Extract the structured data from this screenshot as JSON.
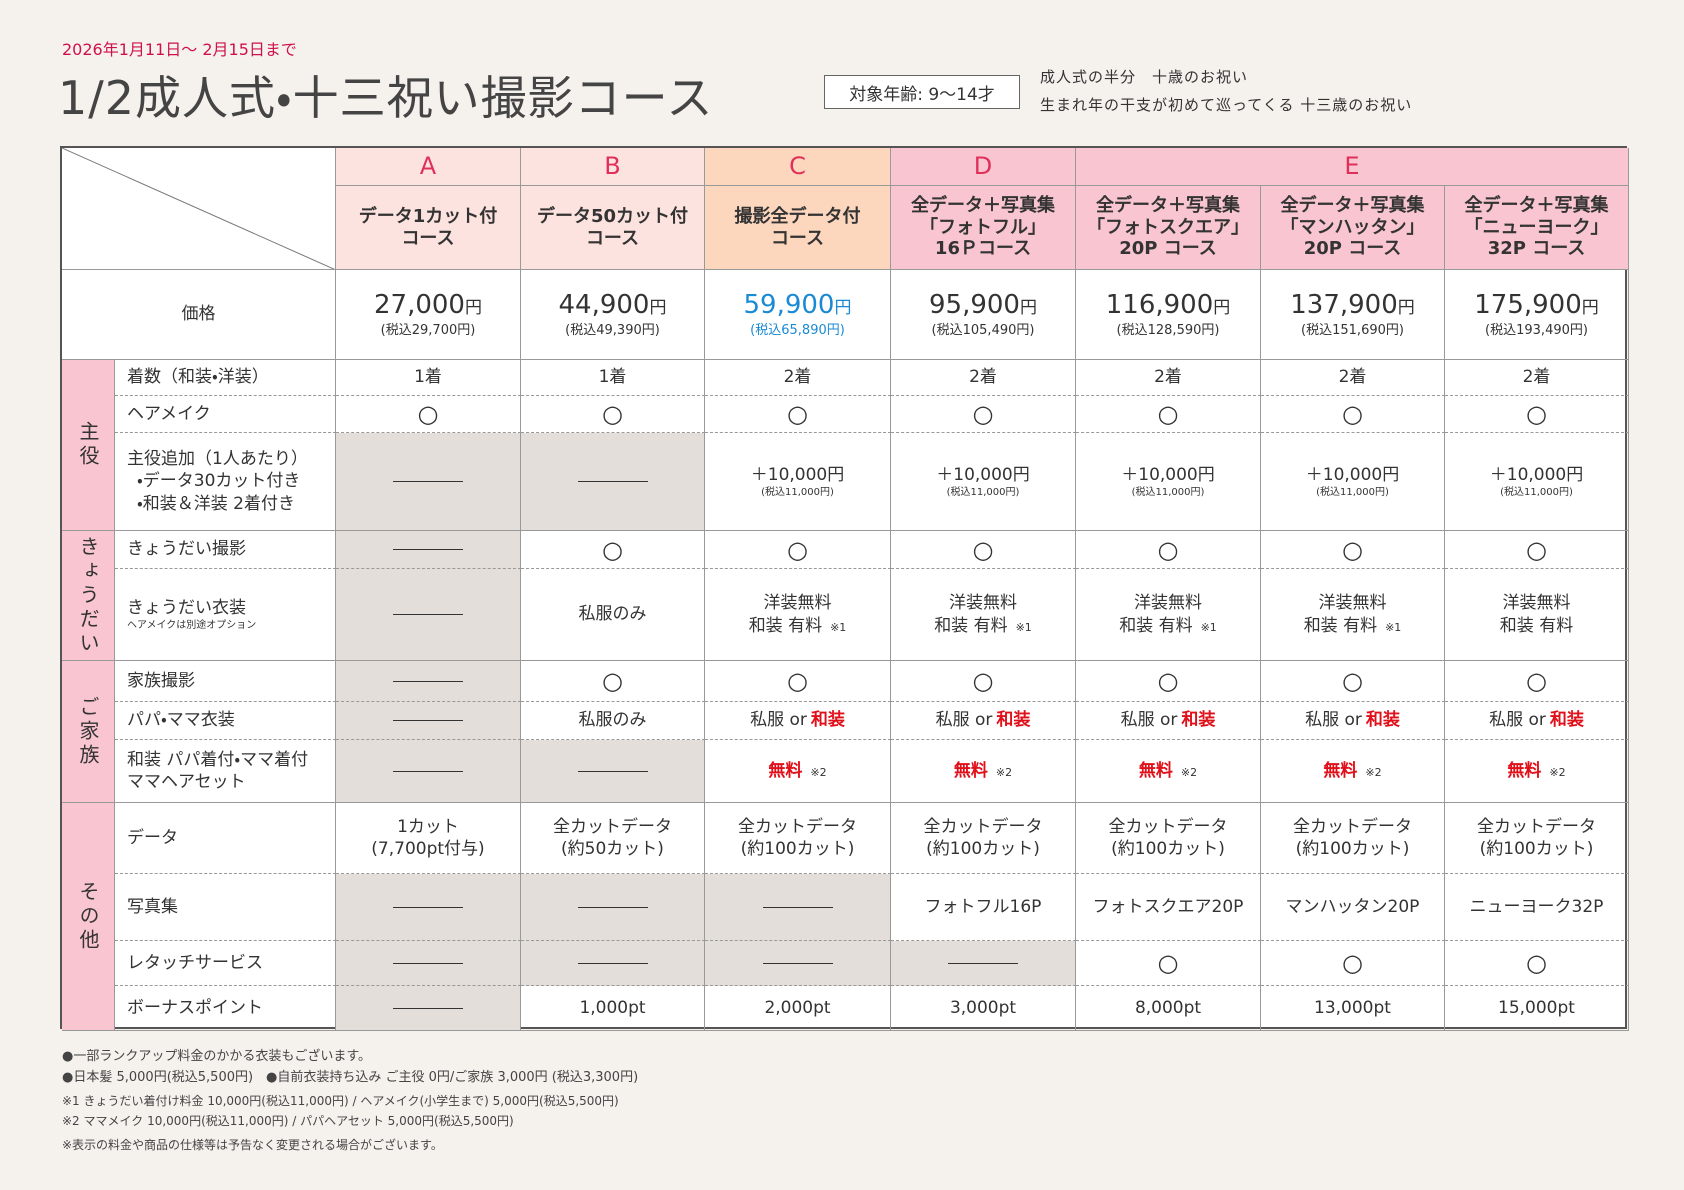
{
  "header": {
    "period": "2026年1月11日～ 2月15日まで",
    "title": "1/2成人式・十三祝い撮影コース",
    "age": "対象年齢: 9〜14才",
    "subtitle": [
      "成人式の半分　十歳のお祝い",
      "生まれ年の干支が初めて巡ってくる 十三歳のお祝い"
    ]
  },
  "table": {
    "groups": [
      {
        "letter": "A",
        "color": "#fde3df",
        "courses": [
          {
            "name": [
              "データ1カット付",
              "コース"
            ],
            "amount": "27,000",
            "yen": "円",
            "tax": "(税込29,700円)"
          }
        ]
      },
      {
        "letter": "B",
        "color": "#fde3df",
        "courses": [
          {
            "name": [
              "データ50カット付",
              "コース"
            ],
            "amount": "44,900",
            "yen": "円",
            "tax": "(税込49,390円)"
          }
        ]
      },
      {
        "letter": "C",
        "color": "#fcd6bd",
        "courses": [
          {
            "name": [
              "撮影全データ付",
              "コース"
            ],
            "amount": "59,900",
            "yen": "円",
            "tax": "(税込65,890円)",
            "price_color": "#1a8ad4"
          }
        ]
      },
      {
        "letter": "D",
        "color": "#f8c5d0",
        "courses": [
          {
            "name": [
              "全データ＋写真集",
              "「フォトフル」",
              "16Ｐコース"
            ],
            "amount": "95,900",
            "yen": "円",
            "tax": "(税込105,490円)"
          }
        ]
      },
      {
        "letter": "E",
        "color": "#f8c5d0",
        "courses": [
          {
            "name": [
              "全データ＋写真集",
              "「フォトスクエア」",
              "20P コース"
            ],
            "amount": "116,900",
            "yen": "円",
            "tax": "(税込128,590円)"
          },
          {
            "name": [
              "全データ＋写真集",
              "「マンハッタン」",
              "20P コース"
            ],
            "amount": "137,900",
            "yen": "円",
            "tax": "(税込151,690円)"
          },
          {
            "name": [
              "全データ＋写真集",
              "「ニューヨーク」",
              "32P コース"
            ],
            "amount": "175,900",
            "yen": "円",
            "tax": "(税込193,490円)"
          }
        ]
      }
    ],
    "price_label": "価格",
    "sections": [
      {
        "label": "主役",
        "rows": [
          {
            "label": [
              "着数（和装・洋装）"
            ],
            "cells": [
              "1着",
              "1着",
              "2着",
              "2着",
              "2着",
              "2着",
              "2着"
            ]
          },
          {
            "label": [
              "ヘアメイク"
            ],
            "cells": [
              "○",
              "○",
              "○",
              "○",
              "○",
              "○",
              "○"
            ]
          },
          {
            "label": [
              "主役追加（1人あたり）",
              "・データ30カット付き",
              "・和装＆洋装 2着付き"
            ],
            "cells": [
              null,
              null,
              {
                "lines": [
                  "＋10,000円"
                ],
                "small": "(税込11,000円)"
              },
              {
                "lines": [
                  "＋10,000円"
                ],
                "small": "(税込11,000円)"
              },
              {
                "lines": [
                  "＋10,000円"
                ],
                "small": "(税込11,000円)"
              },
              {
                "lines": [
                  "＋10,000円"
                ],
                "small": "(税込11,000円)"
              },
              {
                "lines": [
                  "＋10,000円"
                ],
                "small": "(税込11,000円)"
              }
            ]
          }
        ]
      },
      {
        "label": "きょうだい",
        "rows": [
          {
            "label": [
              "きょうだい撮影"
            ],
            "cells": [
              null,
              "○",
              "○",
              "○",
              "○",
              "○",
              "○"
            ]
          },
          {
            "label": [
              "きょうだい衣装"
            ],
            "note": "ヘアメイクは別途オプション",
            "cells": [
              null,
              "私服のみ",
              {
                "lines": [
                  "洋装無料",
                  "和装 有料"
                ],
                "note": "※1"
              },
              {
                "lines": [
                  "洋装無料",
                  "和装 有料"
                ],
                "note": "※1"
              },
              {
                "lines": [
                  "洋装無料",
                  "和装 有料"
                ],
                "note": "※1"
              },
              {
                "lines": [
                  "洋装無料",
                  "和装 有料"
                ],
                "note": "※1"
              },
              {
                "lines": [
                  "洋装無料",
                  "和装 有料"
                ]
              }
            ]
          }
        ]
      },
      {
        "label": "ご家族",
        "rows": [
          {
            "label": [
              "家族撮影"
            ],
            "cells": [
              null,
              "○",
              "○",
              "○",
              "○",
              "○",
              "○"
            ]
          },
          {
            "label": [
              "パパ・ママ衣装"
            ],
            "cells": [
              null,
              "私服のみ",
              {
                "lines": [
                  "私服 or"
                ],
                "red": "和装"
              },
              {
                "lines": [
                  "私服 or"
                ],
                "red": "和装"
              },
              {
                "lines": [
                  "私服 or"
                ],
                "red": "和装"
              },
              {
                "lines": [
                  "私服 or"
                ],
                "red": "和装"
              },
              {
                "lines": [
                  "私服 or"
                ],
                "red": "和装"
              }
            ]
          },
          {
            "label": [
              "和装 パパ着付・ママ着付",
              "ママヘアセット"
            ],
            "cells": [
              null,
              null,
              {
                "red": "無料",
                "note": "※2"
              },
              {
                "red": "無料",
                "note": "※2"
              },
              {
                "red": "無料",
                "note": "※2"
              },
              {
                "red": "無料",
                "note": "※2"
              },
              {
                "red": "無料",
                "note": "※2"
              }
            ]
          }
        ]
      },
      {
        "label": "その他",
        "rows": [
          {
            "label": [
              "データ"
            ],
            "cells": [
              {
                "lines": [
                  "1カット",
                  "(7,700pt付与)"
                ]
              },
              {
                "lines": [
                  "全カットデータ",
                  "(約50カット)"
                ]
              },
              {
                "lines": [
                  "全カットデータ",
                  "(約100カット)"
                ]
              },
              {
                "lines": [
                  "全カットデータ",
                  "(約100カット)"
                ]
              },
              {
                "lines": [
                  "全カットデータ",
                  "(約100カット)"
                ]
              },
              {
                "lines": [
                  "全カットデータ",
                  "(約100カット)"
                ]
              },
              {
                "lines": [
                  "全カットデータ",
                  "(約100カット)"
                ]
              }
            ]
          },
          {
            "label": [
              "写真集"
            ],
            "cells": [
              null,
              null,
              null,
              "フォトフル16P",
              "フォトスクエア20P",
              "マンハッタン20P",
              "ニューヨーク32P"
            ]
          },
          {
            "label": [
              "レタッチサービス"
            ],
            "cells": [
              null,
              null,
              null,
              null,
              "○",
              "○",
              "○"
            ]
          },
          {
            "label": [
              "ボーナスポイント"
            ],
            "cells": [
              null,
              "1,000pt",
              "2,000pt",
              "3,000pt",
              "8,000pt",
              "13,000pt",
              "15,000pt"
            ]
          }
        ]
      }
    ]
  },
  "footer": [
    "●一部ランクアップ料金のかかる衣装もございます。",
    "●日本髪 5,000円(税込5,500円)　●自前衣装持ち込み ご主役 0円/ご家族 3,000円 (税込3,300円)",
    "※1 きょうだい着付け料金 10,000円(税込11,000円) / ヘアメイク(小学生まで) 5,000円(税込5,500円)",
    "※2 ママメイク 10,000円(税込11,000円) / パパヘアセット 5,000円(税込5,500円)",
    "※表示の料金や商品の仕様等は予告なく変更される場合がございます。"
  ]
}
